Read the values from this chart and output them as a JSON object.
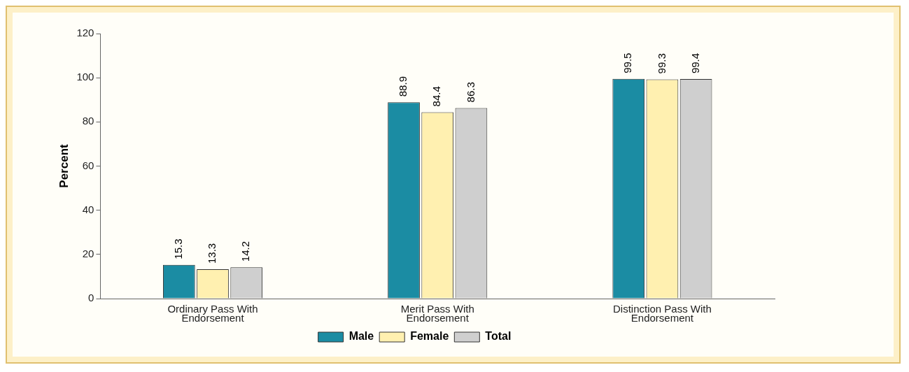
{
  "chart_data": {
    "type": "bar",
    "ylabel": "Percent",
    "categories": [
      "Ordinary Pass With Endorsement",
      "Merit Pass With Endorsement",
      "Distinction Pass With Endorsement"
    ],
    "series": [
      {
        "name": "Male",
        "color": "#1b8ca3",
        "values": [
          15.3,
          88.9,
          99.5
        ]
      },
      {
        "name": "Female",
        "color": "#fff0b0",
        "values": [
          13.3,
          84.4,
          99.3
        ]
      },
      {
        "name": "Total",
        "color": "#cfcfcf",
        "values": [
          14.2,
          86.3,
          99.4
        ]
      }
    ],
    "ylim": [
      0,
      120
    ],
    "yticks": [
      0,
      20,
      40,
      60,
      80,
      100,
      120
    ],
    "grid": false,
    "legend": "bottom",
    "data_labels": true
  }
}
